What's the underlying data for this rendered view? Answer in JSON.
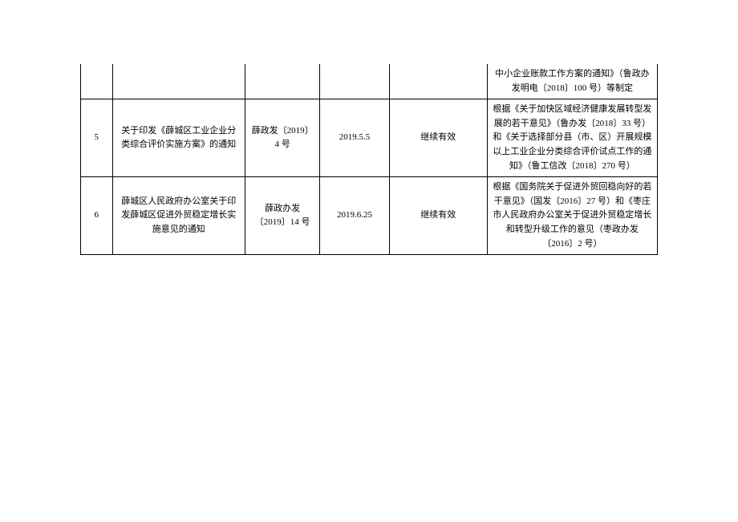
{
  "table": {
    "columns": [
      "idx",
      "title",
      "docno",
      "date",
      "status",
      "basis"
    ],
    "column_widths_pct": [
      5.5,
      23,
      13,
      12,
      17,
      29.5
    ],
    "border_color": "#000000",
    "background_color": "#ffffff",
    "text_color": "#000000",
    "font_size": 11,
    "font_family": "SimSun",
    "rows": [
      {
        "idx": "",
        "title": "",
        "docno": "",
        "date": "",
        "status": "",
        "basis": "中小企业账款工作方案的通知》（鲁政办发明电〔2018〕100 号）等制定"
      },
      {
        "idx": "5",
        "title": "关于印发《薛城区工业企业分类综合评价实施方案》的通知",
        "docno": "薛政发〔2019〕4 号",
        "date": "2019.5.5",
        "status": "继续有效",
        "basis": "根据《关于加快区域经济健康发展转型发展的若干意见》（鲁办发〔2018〕33 号）和《关于选择部分县（市、区）开展规模以上工业企业分类综合评价试点工作的通知》（鲁工信改〔2018〕270 号）"
      },
      {
        "idx": "6",
        "title": "薛城区人民政府办公室关于印发薛城区促进外贸稳定增长实施意见的通知",
        "docno": "薛政办发〔2019〕14 号",
        "date": "2019.6.25",
        "status": "继续有效",
        "basis": "根据《国务院关于促进外贸回稳向好的若干意见》（国发〔2016〕27 号）和《枣庄市人民政府办公室关于促进外贸稳定增长和转型升级工作的意见（枣政办发〔2016〕2 号）"
      }
    ]
  }
}
